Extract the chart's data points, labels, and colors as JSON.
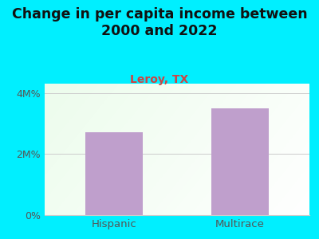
{
  "title": "Change in per capita income between\n2000 and 2022",
  "subtitle": "Leroy, TX",
  "categories": [
    "Hispanic",
    "Multirace"
  ],
  "values": [
    2.7,
    3.5
  ],
  "bar_color": "#bf9fcc",
  "title_fontsize": 12.5,
  "subtitle_fontsize": 10,
  "subtitle_color": "#cc4444",
  "title_color": "#111111",
  "background_color": "#00efff",
  "plot_bg_color_topleft": "#d8f0d0",
  "plot_bg_color_topright": "#f0f8f0",
  "plot_bg_color_bottomleft": "#e8f8e0",
  "plot_bg_color_bottomright": "#ffffff",
  "yticks": [
    0,
    2,
    4
  ],
  "ytick_labels": [
    "0%",
    "2M%",
    "4M%"
  ],
  "ylim": [
    0,
    4.3
  ],
  "tick_color": "#555555",
  "grid_color": "#cccccc",
  "bar_width": 0.45,
  "xlim": [
    -0.55,
    1.55
  ]
}
